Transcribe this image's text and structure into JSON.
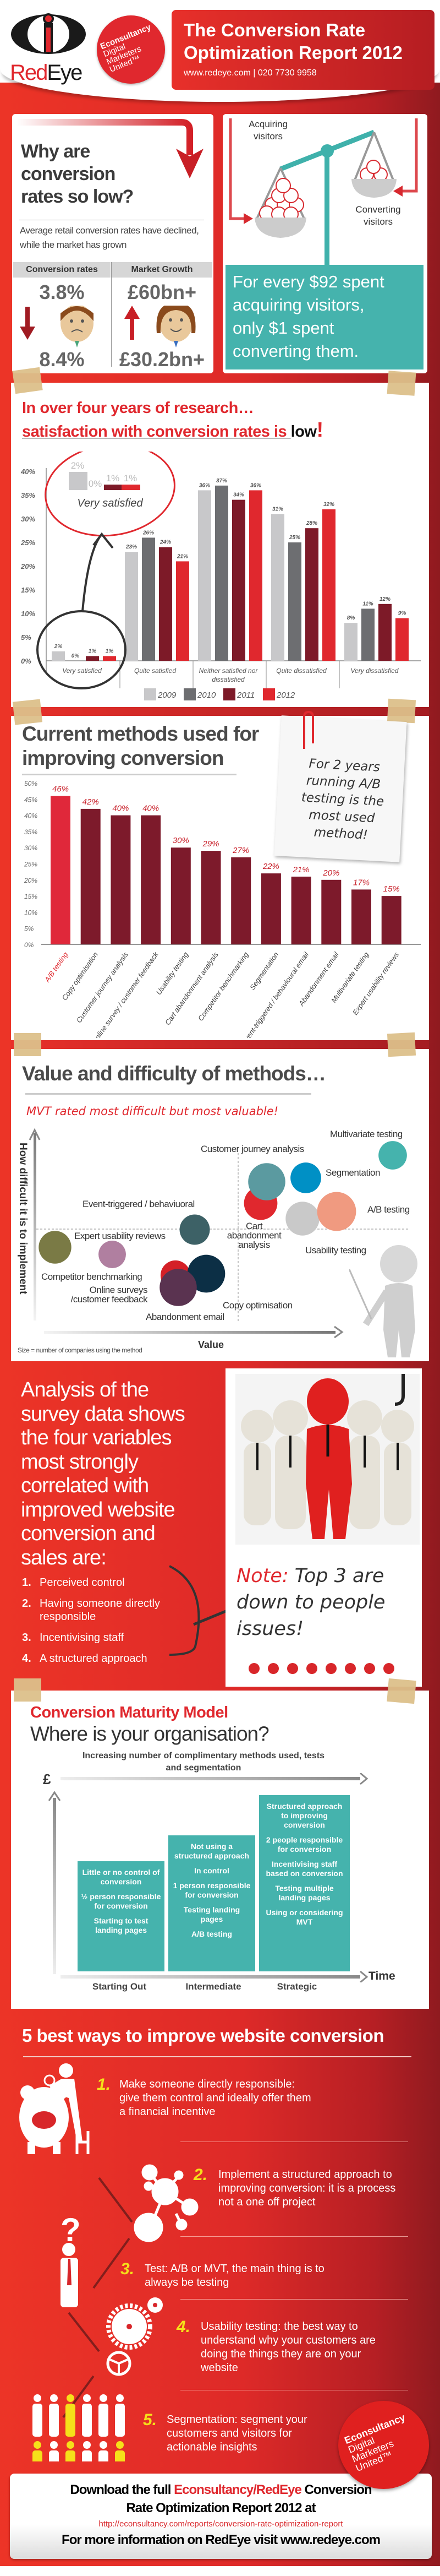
{
  "header": {
    "logo_red": "Red",
    "logo_dark": "Eye",
    "badge_lines": [
      "Econsultancy",
      "Digital",
      "Marketers",
      "United™"
    ],
    "title_line1": "The Conversion Rate",
    "title_line2": "Optimization Report 2012",
    "contact": "www.redeye.com  |  020 7730 9958"
  },
  "why": {
    "title_lines": [
      "Why are",
      "conversion",
      "rates so low?"
    ],
    "description": "Average retail conversion rates have declined, while the market has grown",
    "col1_header": "Conversion rates",
    "col2_header": "Market Growth",
    "conversion_rates": [
      "3.8%",
      "8.4%"
    ],
    "market_growth": [
      "£60bn+",
      "£30.2bn+"
    ]
  },
  "balance": {
    "acquiring_label": "Acquiring visitors",
    "converting_label": "Converting visitors",
    "statement_lines": [
      "For every $92 spent",
      "acquiring visitors,",
      "only $1 spent",
      "converting them."
    ],
    "accent": "#45b3ad"
  },
  "satisfaction": {
    "title_line1": "In over four years of research…",
    "title_line2": "satisfaction with conversion rates is ",
    "title_emph": "low",
    "callout_label": "Very satisfied"
  },
  "methods": {
    "title_lines": [
      "Current methods used for",
      "improving conversion"
    ],
    "note_lines": [
      "For 2 years",
      "running A/B",
      "testing is the",
      "most used",
      "method!"
    ]
  },
  "value": {
    "title": "Value and difficulty of methods…",
    "subtitle": "MVT rated most difficult but most valuable!",
    "y_label": "How difficult it is to implement",
    "x_label": "Value",
    "size_note": "Size = number of companies using the method"
  },
  "analysis": {
    "heading_lines": [
      "Analysis of the",
      "survey data shows",
      "the four variables",
      "most strongly",
      "correlated with",
      "improved website",
      "conversion and",
      "sales are:"
    ],
    "items": [
      {
        "num": "1.",
        "text": "Perceived control"
      },
      {
        "num": "2.",
        "text": "Having someone directly responsible"
      },
      {
        "num": "3.",
        "text": "Incentivising staff"
      },
      {
        "num": "4.",
        "text": "A structured approach"
      }
    ],
    "note_label": "Note:",
    "note_text": "Top 3 are down to people issues!"
  },
  "maturity": {
    "title": "Conversion Maturity Model",
    "subtitle": "Where is your organisation?",
    "axis_top": "Increasing number of complimentary methods used, tests and segmentation",
    "axis_y": "£",
    "axis_x": "Time",
    "stages": [
      {
        "name": "Starting Out",
        "points": [
          "Little or no control of conversion",
          "½ person responsible for conversion",
          "Starting to test landing pages"
        ]
      },
      {
        "name": "Intermediate",
        "points": [
          "Not using a structured approach",
          "In control",
          "1 person responsible for conversion",
          "Testing landing pages",
          "A/B testing"
        ]
      },
      {
        "name": "Strategic",
        "points": [
          "Structured approach to improving conversion",
          "2 people responsible for conversion",
          "Incentivising staff based on conversion",
          "Testing multiple landing pages",
          "Using or considering MVT"
        ]
      }
    ]
  },
  "best_ways": {
    "title": "5 best ways to improve website conversion",
    "items": [
      {
        "num": "1.",
        "text": "Make someone directly responsible: give them control and ideally offer them a financial incentive"
      },
      {
        "num": "2.",
        "text": "Implement a structured approach to improving conversion: it is a process not a one off project"
      },
      {
        "num": "3.",
        "text": "Test: A/B or MVT, the main thing is to always be testing"
      },
      {
        "num": "4.",
        "text": "Usability testing: the best way to understand why your customers are doing the things they are on your website"
      },
      {
        "num": "5.",
        "text": "Segmentation: segment your customers and visitors for actionable insights"
      }
    ]
  },
  "footer": {
    "line1_a": "Download the full ",
    "line1_brand": "Econsultancy/RedEye",
    "line1_b": " Conversion",
    "line2": "Rate Optimization Report 2012 at",
    "url": "http://econsultancy.com/reports/conversion-rate-optimization-report",
    "line3": "For more information on RedEye visit www.redeye.com"
  },
  "colors": {
    "brand_red": "#e0282e",
    "dark_red": "#7d1a28",
    "teal": "#45b3ad",
    "highlight_yellow": "#f5e01a"
  },
  "chart_data": [
    {
      "type": "bar",
      "categories": [
        "Very satisfied",
        "Quite satisfied",
        "Neither satisfied nor dissatisfied",
        "Quite dissatisfied",
        "Very dissatisfied"
      ],
      "category_labels": [
        "Very satisfied",
        "Quite satisfied",
        "Neither satisfied nor dissatisfied",
        "Quite dissatisfied",
        "Very dissatisfied"
      ],
      "series": [
        {
          "name": "2009",
          "color": "#c8c8ca",
          "values": [
            2,
            23,
            36,
            31,
            8
          ]
        },
        {
          "name": "2010",
          "color": "#6d6e71",
          "values": [
            0,
            26,
            37,
            25,
            11
          ]
        },
        {
          "name": "2011",
          "color": "#7d1a28",
          "values": [
            1,
            24,
            34,
            28,
            12
          ]
        },
        {
          "name": "2012",
          "color": "#e0282e",
          "values": [
            1,
            21,
            36,
            32,
            9
          ]
        }
      ],
      "yticks": [
        "0%",
        "5%",
        "10%",
        "15%",
        "20%",
        "25%",
        "30%",
        "35%",
        "40%"
      ],
      "ylim": [
        0,
        40
      ],
      "legend": "bottom",
      "grid": false
    },
    {
      "type": "bar",
      "categories": [
        "A/B testing",
        "Copy optimisation",
        "Customer journey analysis",
        "Online survey / customer feedback",
        "Usability testing",
        "Cart abandonment analysis",
        "Competitor benchmarking",
        "Segmentation",
        "Event-triggered / behavioural email",
        "Abandonment email",
        "Multivariate testing",
        "Expert usability reviews"
      ],
      "values": [
        46,
        42,
        40,
        40,
        30,
        29,
        27,
        22,
        21,
        20,
        17,
        15
      ],
      "value_labels": [
        "46%",
        "42%",
        "40%",
        "40%",
        "30%",
        "29%",
        "27%",
        "22%",
        "21%",
        "20%",
        "17%",
        "15%"
      ],
      "highlight": "A/B testing",
      "colors": {
        "highlight": "#e0283a",
        "default": "#7d1a2b"
      },
      "yticks": [
        "0%",
        "5%",
        "10%",
        "15%",
        "20%",
        "25%",
        "30%",
        "35%",
        "40%",
        "45%",
        "50%"
      ],
      "ylim": [
        0,
        50
      ],
      "grid": false
    },
    {
      "type": "scatter",
      "xlabel": "Value",
      "ylabel": "How difficult it is to implement",
      "size_meaning": "number of companies using the method",
      "points": [
        {
          "label": "Multivariate testing",
          "value": 9.6,
          "difficulty": 9.2,
          "size": 17,
          "color": "#45b3ad"
        },
        {
          "label": "Customer journey analysis",
          "value": 6.0,
          "difficulty": 7.8,
          "size": 40,
          "color": "#5b9aa0"
        },
        {
          "label": "Segmentation",
          "value": 7.1,
          "difficulty": 8.0,
          "size": 22,
          "color": "#0090c5"
        },
        {
          "label": "Cart abandonment analysis",
          "value": 5.8,
          "difficulty": 6.6,
          "size": 29,
          "color": "#e0282e"
        },
        {
          "label": "Usability testing",
          "value": 7.0,
          "difficulty": 5.8,
          "size": 30,
          "color": "#c9c9c9"
        },
        {
          "label": "A/B testing",
          "value": 8.0,
          "difficulty": 6.2,
          "size": 46,
          "color": "#f09a80"
        },
        {
          "label": "Event-triggered / behaviuoral",
          "value": 4.2,
          "difficulty": 5.0,
          "size": 21,
          "color": "#3d6166"
        },
        {
          "label": "Expert usability reviews",
          "value": 2.1,
          "difficulty": 3.7,
          "size": 15,
          "color": "#b07fa0"
        },
        {
          "label": "Competitor benchmarking",
          "value": 0.5,
          "difficulty": 4.1,
          "size": 27,
          "color": "#7a7a45"
        },
        {
          "label": "Abandonment email",
          "value": 3.8,
          "difficulty": 2.6,
          "size": 20,
          "color": "#d42027"
        },
        {
          "label": "Online surveys /customer feedback",
          "value": 3.9,
          "difficulty": 2.0,
          "size": 40,
          "color": "#5a3350"
        },
        {
          "label": "Copy optimisation",
          "value": 4.5,
          "difficulty": 2.7,
          "size": 42,
          "color": "#0c2f45"
        }
      ],
      "quadrant_dividers": true
    }
  ]
}
